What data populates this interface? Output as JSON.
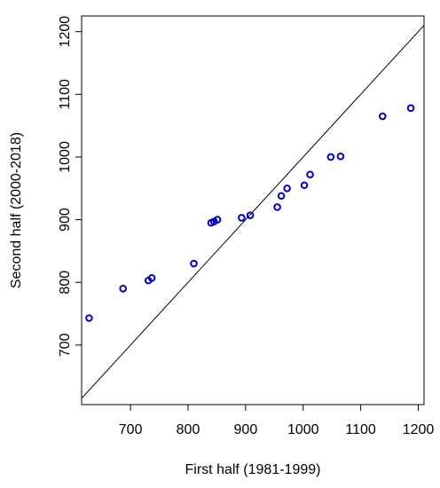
{
  "chart_data": {
    "type": "scatter",
    "xlabel": "First half (1981-1999)",
    "ylabel": "Second half (2000-2018)",
    "xlim": [
      615,
      1210
    ],
    "ylim": [
      605,
      1225
    ],
    "xticks": [
      700,
      800,
      900,
      1000,
      1100,
      1200
    ],
    "yticks": [
      700,
      800,
      900,
      1000,
      1100,
      1200
    ],
    "x_tick_labels": [
      "700",
      "800",
      "900",
      "1000",
      "1100",
      "1200"
    ],
    "y_tick_labels": [
      "700",
      "800",
      "900",
      "1000",
      "1100",
      "1200"
    ],
    "reference_line": "y = x",
    "grid": false,
    "marker": "open circle",
    "marker_color": "#0000c8",
    "points": [
      {
        "x": 628,
        "y": 743
      },
      {
        "x": 687,
        "y": 790
      },
      {
        "x": 731,
        "y": 803
      },
      {
        "x": 737,
        "y": 807
      },
      {
        "x": 810,
        "y": 830
      },
      {
        "x": 840,
        "y": 895
      },
      {
        "x": 845,
        "y": 897
      },
      {
        "x": 851,
        "y": 900
      },
      {
        "x": 893,
        "y": 903
      },
      {
        "x": 908,
        "y": 907
      },
      {
        "x": 955,
        "y": 920
      },
      {
        "x": 962,
        "y": 938
      },
      {
        "x": 972,
        "y": 950
      },
      {
        "x": 1002,
        "y": 955
      },
      {
        "x": 1012,
        "y": 972
      },
      {
        "x": 1048,
        "y": 1000
      },
      {
        "x": 1065,
        "y": 1001
      },
      {
        "x": 1138,
        "y": 1065
      },
      {
        "x": 1187,
        "y": 1078
      }
    ]
  }
}
